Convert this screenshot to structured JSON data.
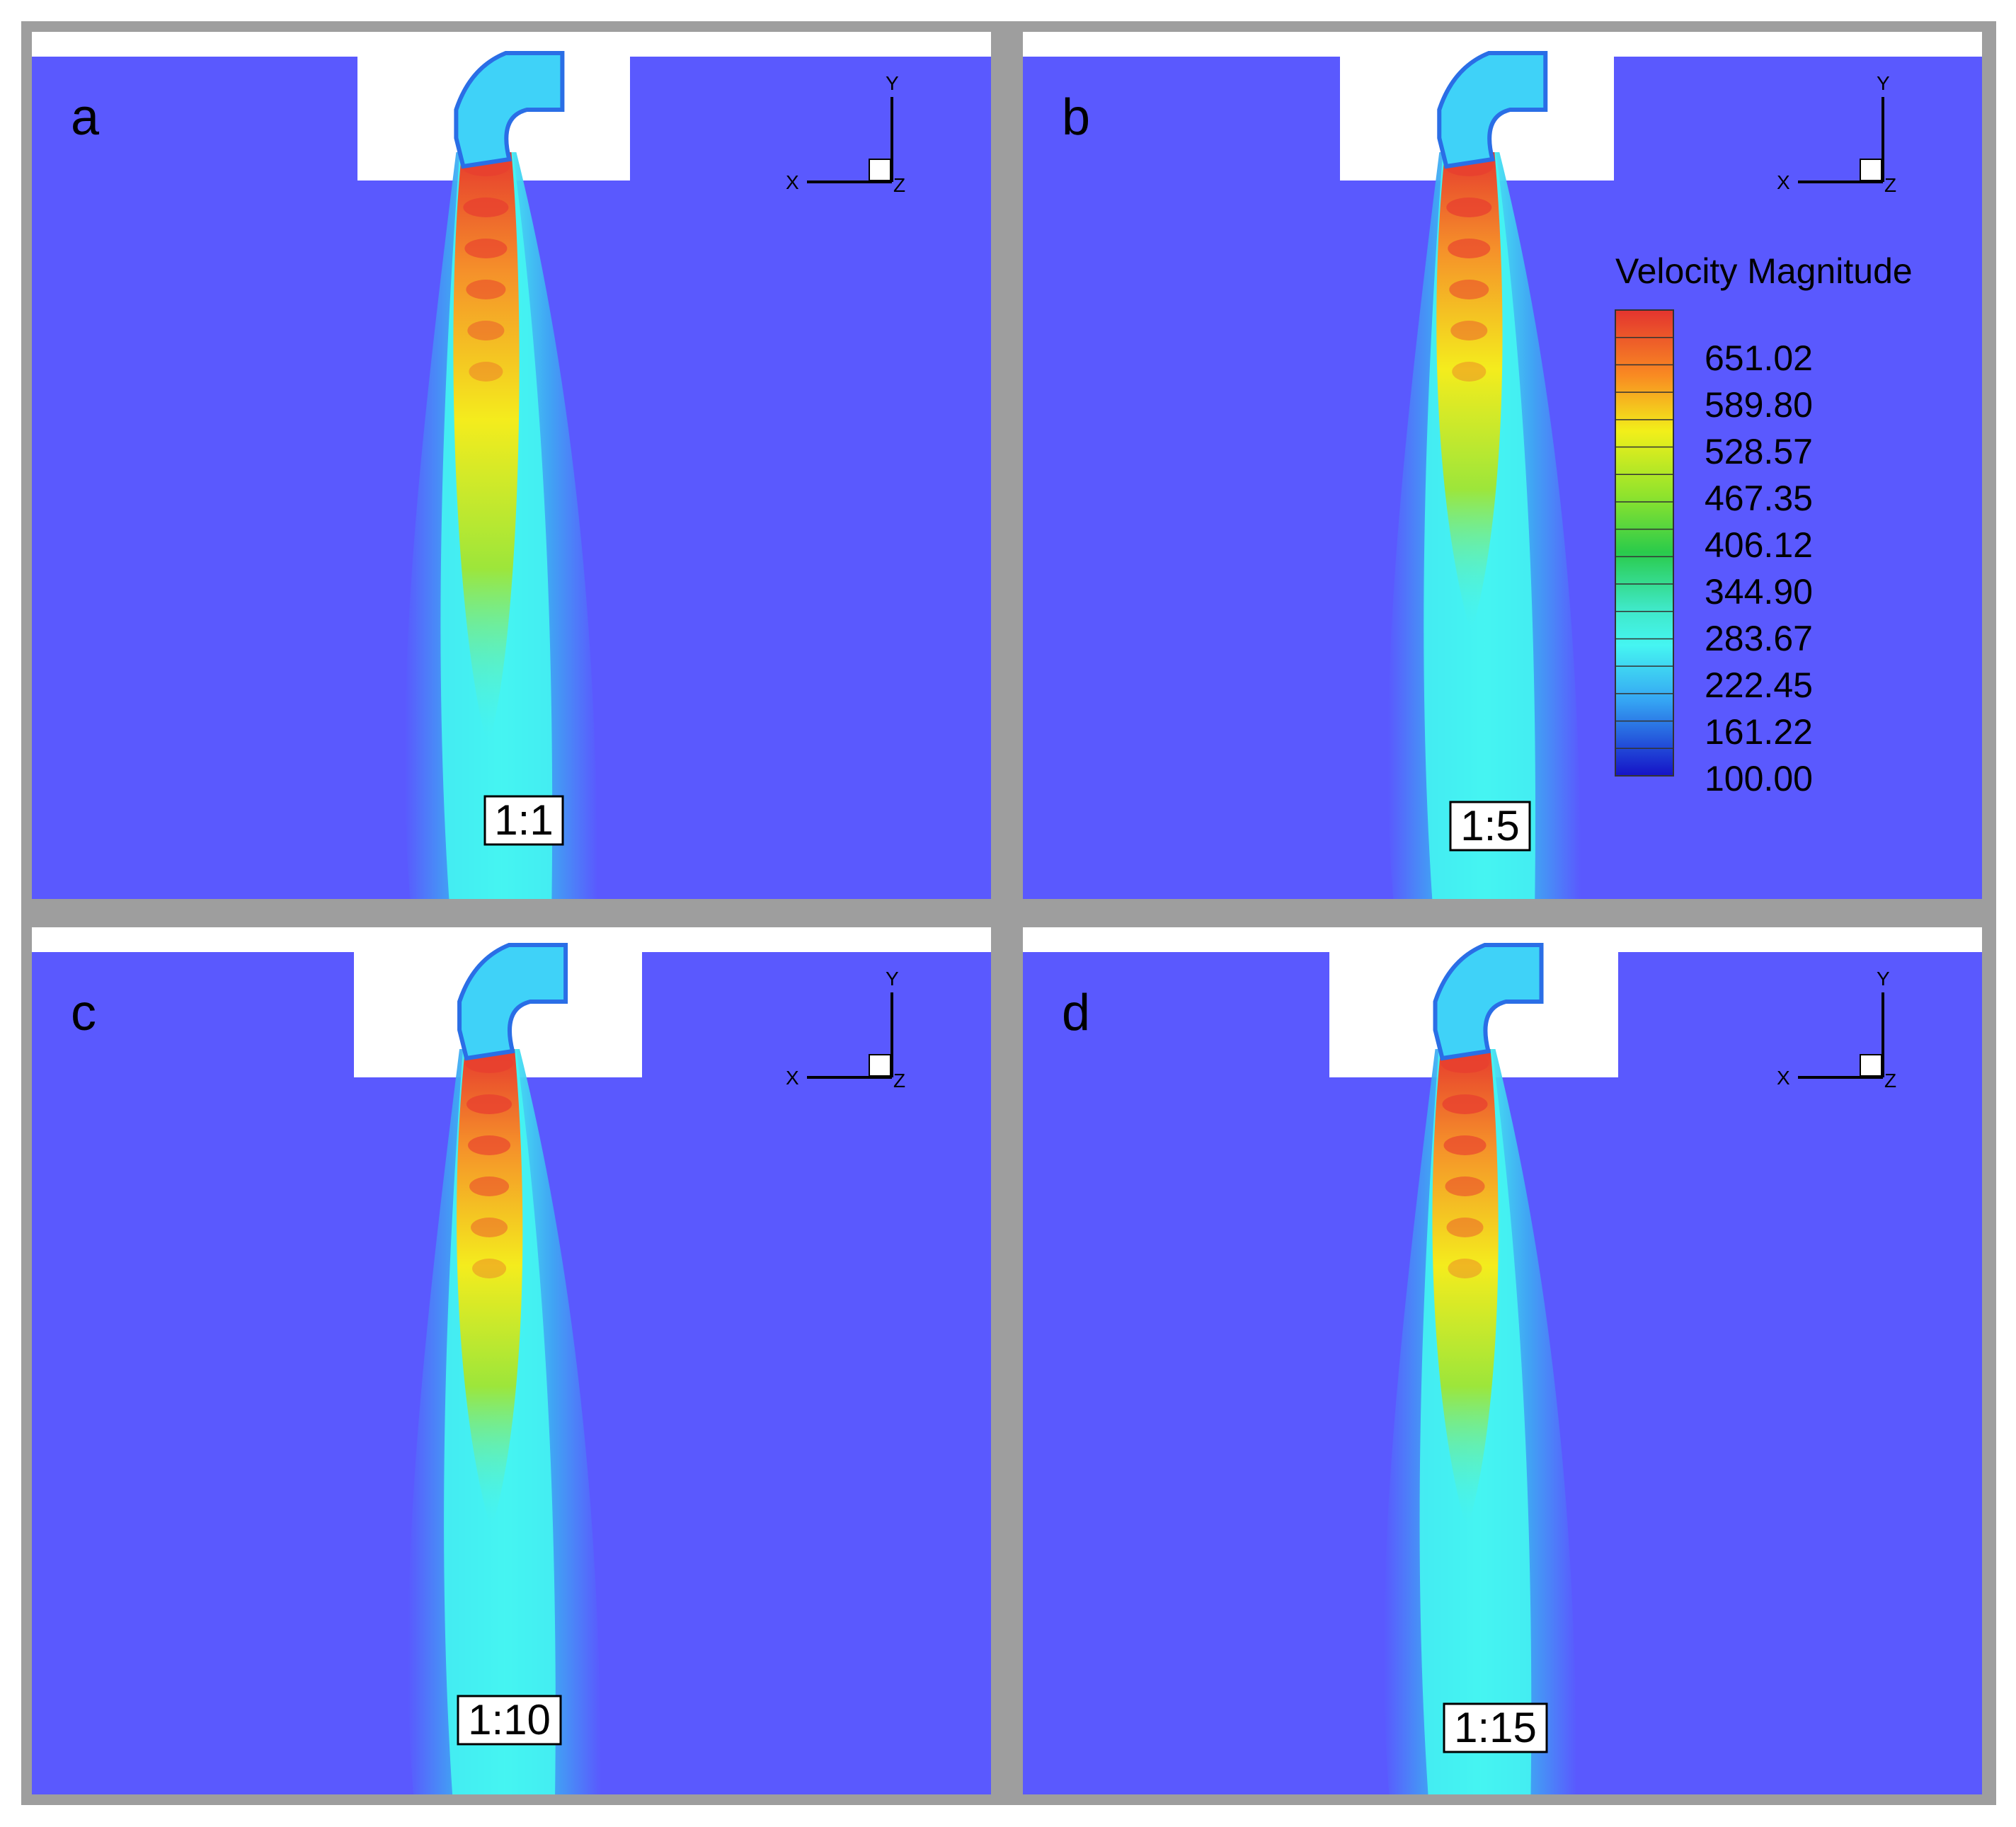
{
  "panels": [
    {
      "label": "a",
      "ratio": "1:1"
    },
    {
      "label": "b",
      "ratio": "1:5"
    },
    {
      "label": "c",
      "ratio": "1:10"
    },
    {
      "label": "d",
      "ratio": "1:15"
    }
  ],
  "axes": {
    "y": "Y",
    "x": "X",
    "z": "Z"
  },
  "legend": {
    "title": "Velocity Magnitude",
    "ticks": [
      "651.02",
      "589.80",
      "528.57",
      "467.35",
      "406.12",
      "344.90",
      "283.67",
      "222.45",
      "161.22",
      "100.00"
    ],
    "band_colors": [
      "#e3342f",
      "#f05a2a",
      "#f98a22",
      "#fbbf1a",
      "#f2ef1a",
      "#c4ec2a",
      "#8ee32d",
      "#4fd83c",
      "#2acb4b",
      "#2fd88a",
      "#3fe8c6",
      "#45f5f2",
      "#3fd2f8",
      "#35a4f3",
      "#2a6ee6",
      "#1f3fd9",
      "#1512c7"
    ]
  },
  "colors": {
    "frame": "#9e9e9e",
    "background": "#5a59fe",
    "white": "#ffffff"
  }
}
